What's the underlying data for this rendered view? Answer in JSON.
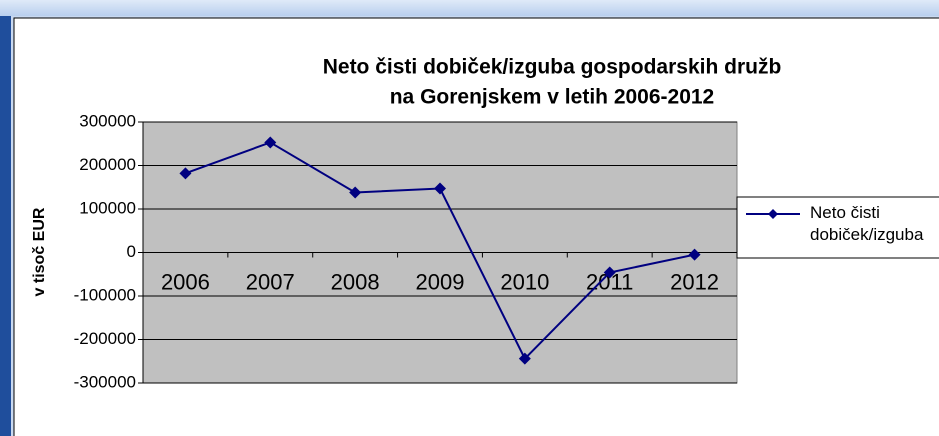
{
  "chart_data": {
    "type": "line",
    "title": [
      "Neto čisti dobiček/izguba gospodarskih družb",
      "na Gorenjskem v letih 2006-2012"
    ],
    "y_label": "v tisoč EUR",
    "categories": [
      "2006",
      "2007",
      "2008",
      "2009",
      "2010",
      "2011",
      "2012"
    ],
    "series": [
      {
        "name": "Neto čisti dobiček/izguba",
        "color": "#000080",
        "values": [
          182000,
          253000,
          138000,
          147000,
          -244000,
          -46000,
          -5000
        ]
      }
    ],
    "ylim": [
      -300000,
      300000
    ],
    "yticks": [
      -300000,
      -200000,
      -100000,
      0,
      100000,
      200000,
      300000
    ],
    "grid": true,
    "legend": "right"
  }
}
